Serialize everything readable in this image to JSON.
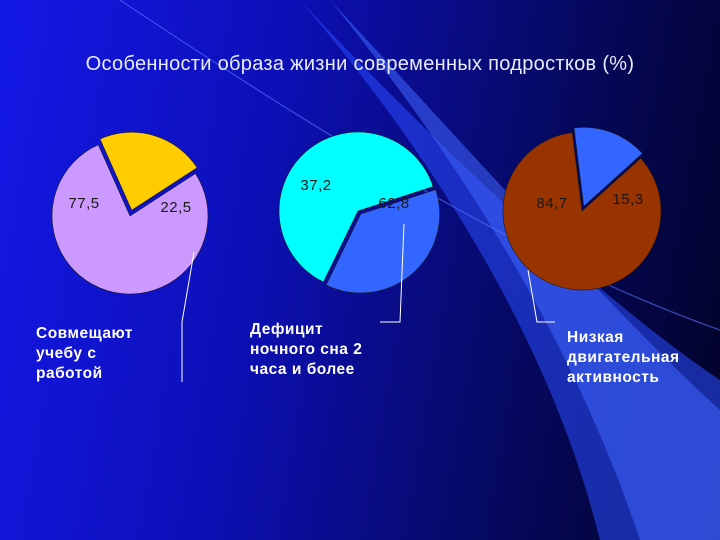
{
  "slide": {
    "title": "Особенности образа жизни современных подростков (%)",
    "colors": {
      "background": "#1418e6",
      "dark_edge": "#020225",
      "pink": "#cc99ff",
      "gold": "#ffcc00",
      "blue": "#3366ff",
      "cyan": "#00ffff",
      "brown": "#993300",
      "bright_blue": "#3366ff"
    }
  },
  "chart_data": [
    {
      "type": "pie",
      "slices": [
        {
          "label": "77,5",
          "value": 77.5,
          "color": "#cc99ff"
        },
        {
          "label": "22,5",
          "value": 22.5,
          "color": "#ffcc00"
        }
      ],
      "callout": "Совмещают учебу с работой"
    },
    {
      "type": "pie",
      "slices": [
        {
          "label": "37,2",
          "value": 37.2,
          "color": "#3366ff"
        },
        {
          "label": "62,8",
          "value": 62.8,
          "color": "#00ffff"
        }
      ],
      "callout": "Дефицит ночного сна 2 часа и более"
    },
    {
      "type": "pie",
      "slices": [
        {
          "label": "84,7",
          "value": 84.7,
          "color": "#993300"
        },
        {
          "label": "15,3",
          "value": 15.3,
          "color": "#3366ff"
        }
      ],
      "callout": "Низкая двигательная активность"
    }
  ]
}
